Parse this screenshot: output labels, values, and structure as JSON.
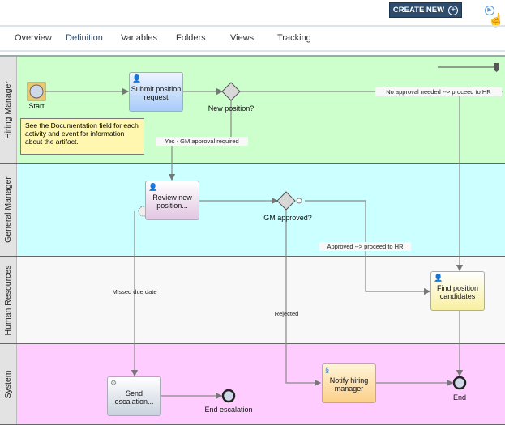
{
  "header": {
    "create_new": "CREATE NEW",
    "create_icon": "plus-circle-icon",
    "play_icon": "play-circle-icon"
  },
  "tabs": [
    {
      "label": "Overview"
    },
    {
      "label": "Definition",
      "selected": true
    },
    {
      "label": "Variables"
    },
    {
      "label": "Folders"
    },
    {
      "label": "Views"
    },
    {
      "label": "Tracking"
    }
  ],
  "lanes": [
    {
      "label": "Hiring Manager",
      "color": "#ccffcc"
    },
    {
      "label": "General Manager",
      "color": "#ccffff"
    },
    {
      "label": "Human Resources",
      "color": "#f8f8f8"
    },
    {
      "label": "System",
      "color": "#ffccff"
    }
  ],
  "events": {
    "start": "Start",
    "end_escalation": "End escalation",
    "end": "End"
  },
  "gateways": {
    "new_position": "New position?",
    "gm_approved": "GM approved?"
  },
  "tasks": {
    "submit": "Submit position request",
    "review": "Review new position...",
    "find": "Find position candidates",
    "send": "Send escalation...",
    "notify": "Notify hiring manager"
  },
  "note": "See the Documentation field for each activity and event for information about the artifact.",
  "flows": {
    "no_approval": "No approval needed --> proceed to HR",
    "yes_gm": "Yes - GM approval required",
    "approved": "Approved --> proceed to HR",
    "missed": "Missed due date",
    "rejected": "Rejected"
  }
}
